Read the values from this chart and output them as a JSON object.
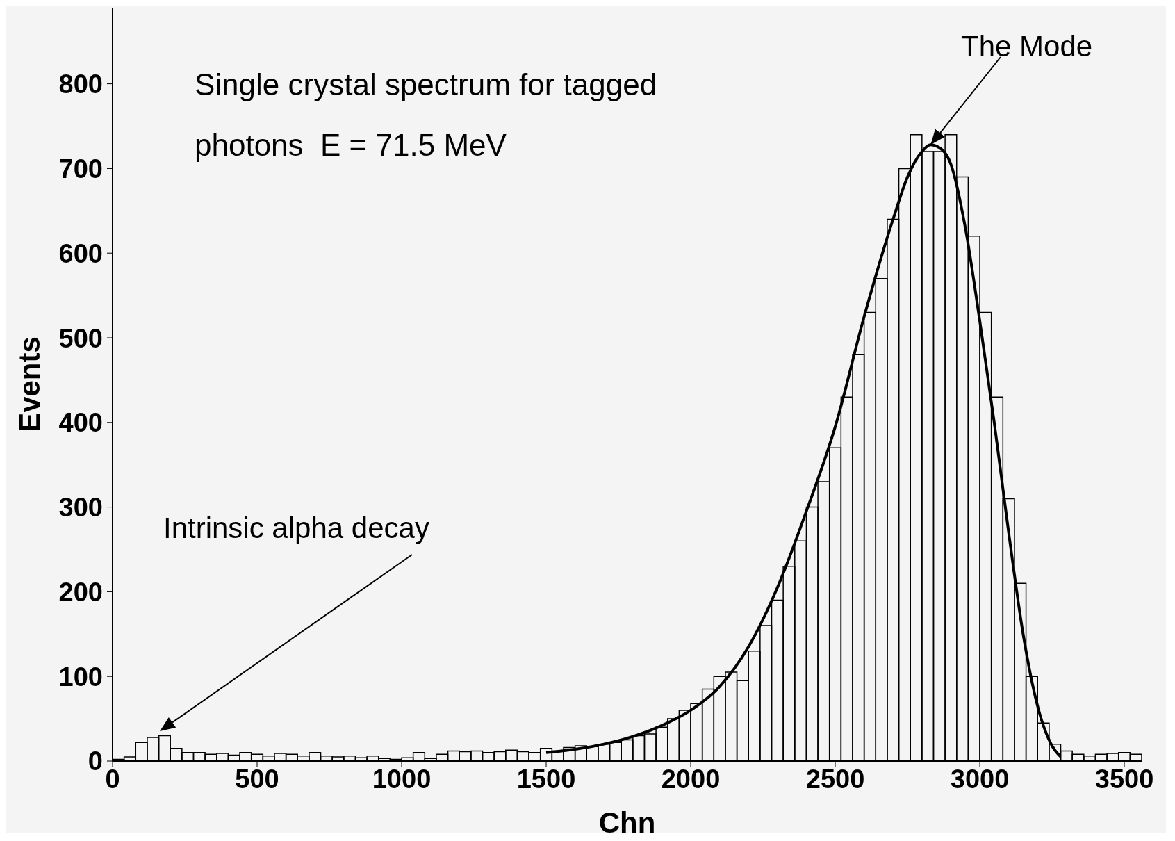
{
  "chart_data": {
    "type": "histogram",
    "title": "Single crystal spectrum for tagged photons  E = 71.5 MeV",
    "xlabel": "Chn",
    "ylabel": "Events",
    "bins": [
      0,
      40,
      80,
      120,
      160,
      200,
      240,
      280,
      320,
      360,
      400,
      440,
      480,
      520,
      560,
      600,
      640,
      680,
      720,
      760,
      800,
      840,
      880,
      920,
      960,
      1000,
      1040,
      1080,
      1120,
      1160,
      1200,
      1240,
      1280,
      1320,
      1360,
      1400,
      1440,
      1480,
      1520,
      1560,
      1600,
      1640,
      1680,
      1720,
      1760,
      1800,
      1840,
      1880,
      1920,
      1960,
      2000,
      2040,
      2080,
      2120,
      2160,
      2200,
      2240,
      2280,
      2320,
      2360,
      2400,
      2440,
      2480,
      2520,
      2560,
      2600,
      2640,
      2680,
      2720,
      2760,
      2800,
      2840,
      2880,
      2920,
      2960,
      3000,
      3040,
      3080,
      3120,
      3160,
      3200,
      3240,
      3280,
      3320,
      3360,
      3400,
      3440,
      3480,
      3520,
      3560
    ],
    "values": [
      2,
      5,
      22,
      28,
      30,
      15,
      10,
      10,
      8,
      9,
      7,
      10,
      8,
      6,
      9,
      8,
      6,
      10,
      6,
      5,
      6,
      4,
      6,
      3,
      2,
      4,
      10,
      3,
      8,
      12,
      11,
      12,
      10,
      11,
      13,
      11,
      10,
      15,
      12,
      16,
      18,
      17,
      20,
      22,
      25,
      30,
      32,
      40,
      50,
      60,
      68,
      85,
      100,
      105,
      95,
      130,
      160,
      190,
      230,
      260,
      300,
      330,
      370,
      430,
      480,
      530,
      570,
      640,
      700,
      740,
      720,
      720,
      740,
      690,
      620,
      530,
      430,
      310,
      210,
      100,
      45,
      20,
      12,
      8,
      6,
      8,
      9,
      10,
      8
    ],
    "color": "#000000",
    "series": [
      {
        "type": "line",
        "color": "#000000",
        "x": [
          1500,
          1600,
          1700,
          1800,
          1900,
          2000,
          2100,
          2200,
          2300,
          2400,
          2500,
          2600,
          2700,
          2750,
          2800,
          2830,
          2870,
          2900,
          2950,
          3000,
          3050,
          3100,
          3150,
          3200,
          3250,
          3280
        ],
        "values": [
          10,
          14,
          20,
          29,
          42,
          60,
          88,
          135,
          205,
          295,
          395,
          525,
          640,
          690,
          720,
          728,
          722,
          705,
          630,
          520,
          400,
          270,
          150,
          65,
          18,
          5
        ]
      }
    ],
    "xlim": [
      0,
      3560
    ],
    "ylim": [
      0,
      890
    ],
    "xticks": [
      0,
      500,
      1000,
      1500,
      2000,
      2500,
      3000,
      3500
    ],
    "yticks": [
      0,
      100,
      200,
      300,
      400,
      500,
      600,
      700,
      800
    ],
    "annotations": [
      "Intrinsic alpha decay",
      {
        "text": "The Mode",
        "x": 2830,
        "y": 728
      }
    ],
    "grid": false,
    "legend": false
  }
}
